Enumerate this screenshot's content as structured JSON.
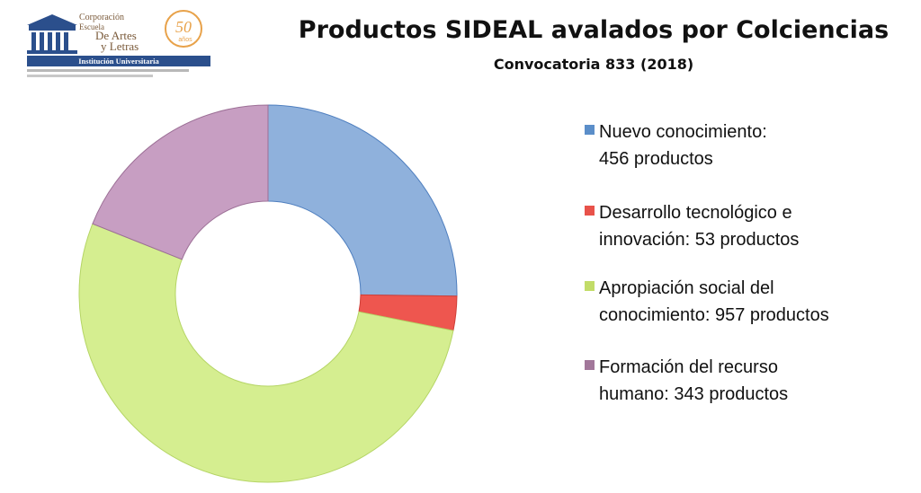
{
  "logo": {
    "line1": "Corporación",
    "line2": "Escuela",
    "line3": "De Artes",
    "line4": "y Letras",
    "line5": "Institución Universitaria",
    "anniversary": "50",
    "anniversary_sub": "años"
  },
  "chart_data": {
    "type": "pie",
    "title": "Productos SIDEAL avalados por Colciencias",
    "subtitle": "Convocatoria 833 (2018)",
    "donut": true,
    "categories": [
      "Nuevo conocimiento:",
      "Desarrollo tecnológico e",
      "Apropiación social del",
      "Formación del recurso"
    ],
    "values": [
      456,
      53,
      957,
      343
    ],
    "legend": [
      {
        "line1": "Nuevo conocimiento:",
        "line2": "456 productos",
        "color": "#5b8ec9"
      },
      {
        "line1": "Desarrollo tecnológico e",
        "line2": "innovación: 53 productos",
        "color": "#e8524a"
      },
      {
        "line1": "Apropiación social del",
        "line2": "conocimiento: 957 productos",
        "color": "#c2dc68"
      },
      {
        "line1": "Formación del recurso",
        "line2": "humano: 343 productos",
        "color": "#a2779a"
      }
    ],
    "colors": [
      "#8fb1dc",
      "#ee564f",
      "#d5ee90",
      "#c79ec2"
    ],
    "edge_colors": [
      "#4f7fbf",
      "#cf3f38",
      "#b5d565",
      "#9c6f96"
    ],
    "legend_position": "right"
  }
}
